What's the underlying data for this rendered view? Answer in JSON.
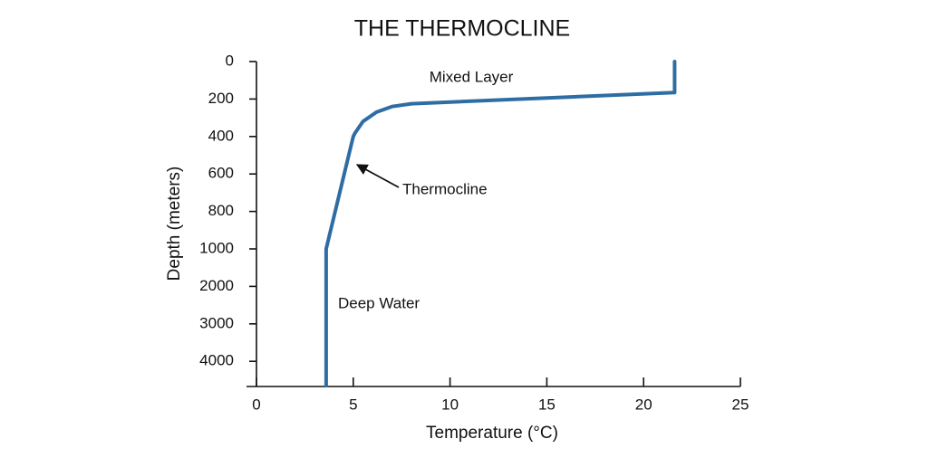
{
  "chart_data": {
    "type": "line",
    "title": "THE THERMOCLINE",
    "x_label": "Temperature (°C)",
    "y_label": "Depth (meters)",
    "x": [
      21.6,
      21.6,
      8,
      7,
      6.2,
      5.5,
      5.1,
      5,
      3.6,
      3.6
    ],
    "series": [
      {
        "color": "#2e6da4",
        "values": [
          0,
          165,
          225,
          240,
          270,
          320,
          380,
          400,
          1000,
          4650
        ]
      }
    ],
    "xlim": [
      0,
      25
    ],
    "xticks": [
      0,
      5,
      10,
      15,
      20,
      25
    ],
    "ylim": [
      0,
      4650
    ],
    "yticks": [
      0,
      200,
      400,
      600,
      800,
      1000,
      2000,
      3000,
      4000
    ],
    "y_reversed": true,
    "annotations": [
      "Mixed Layer",
      "Thermocline",
      "Deep Water"
    ]
  }
}
